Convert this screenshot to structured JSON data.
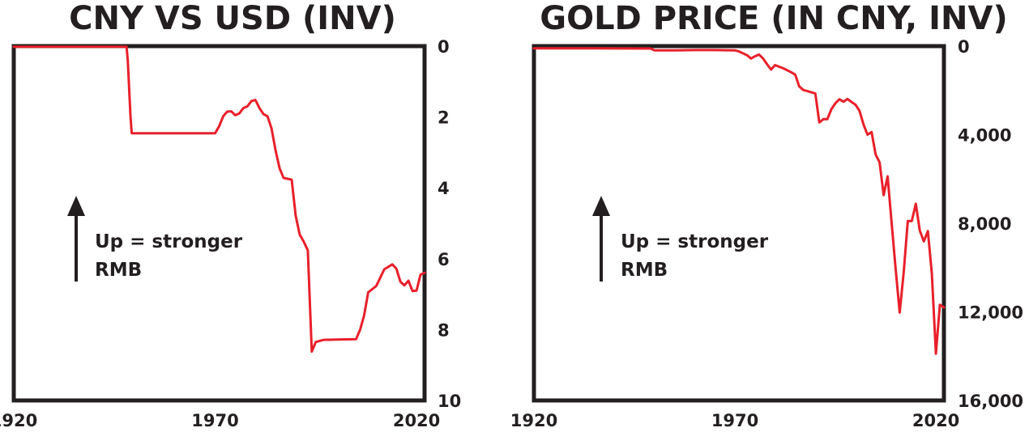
{
  "chart_data": [
    {
      "type": "line",
      "title": "CNY VS USD (INV)",
      "y_inverted": true,
      "y_axis_side": "right",
      "xlim": [
        1920,
        2022
      ],
      "ylim": [
        0,
        10
      ],
      "x_ticks": [
        1920,
        1970,
        2020
      ],
      "x_tick_labels": [
        "1920",
        "1970",
        "2020"
      ],
      "y_ticks": [
        0,
        2,
        4,
        6,
        8,
        10
      ],
      "y_tick_labels": [
        "0",
        "2",
        "4",
        "6",
        "8",
        "10"
      ],
      "grid": false,
      "annotation": {
        "line1": "Up = stronger",
        "line2": "RMB"
      },
      "series": [
        {
          "color": "#e8202a",
          "points": [
            [
              1920,
              0.02
            ],
            [
              1948,
              0.02
            ],
            [
              1948.3,
              0.4
            ],
            [
              1949,
              2.0
            ],
            [
              1949.3,
              2.46
            ],
            [
              1955,
              2.46
            ],
            [
              1970,
              2.46
            ],
            [
              1971,
              2.26
            ],
            [
              1972,
              1.98
            ],
            [
              1973,
              1.85
            ],
            [
              1974,
              1.84
            ],
            [
              1975,
              1.95
            ],
            [
              1976,
              1.9
            ],
            [
              1977,
              1.75
            ],
            [
              1978,
              1.7
            ],
            [
              1979,
              1.55
            ],
            [
              1980,
              1.52
            ],
            [
              1981,
              1.75
            ],
            [
              1982,
              1.92
            ],
            [
              1983,
              1.98
            ],
            [
              1984,
              2.32
            ],
            [
              1985,
              2.94
            ],
            [
              1986,
              3.45
            ],
            [
              1987,
              3.72
            ],
            [
              1989,
              3.77
            ],
            [
              1990,
              4.78
            ],
            [
              1991,
              5.32
            ],
            [
              1992,
              5.52
            ],
            [
              1993,
              5.76
            ],
            [
              1994,
              8.62
            ],
            [
              1995,
              8.35
            ],
            [
              1997,
              8.29
            ],
            [
              2000,
              8.28
            ],
            [
              2005,
              8.27
            ],
            [
              2006,
              8.0
            ],
            [
              2007,
              7.6
            ],
            [
              2008,
              6.95
            ],
            [
              2010,
              6.77
            ],
            [
              2012,
              6.3
            ],
            [
              2014,
              6.16
            ],
            [
              2015,
              6.28
            ],
            [
              2016,
              6.65
            ],
            [
              2017,
              6.75
            ],
            [
              2018,
              6.62
            ],
            [
              2019,
              6.91
            ],
            [
              2020,
              6.9
            ],
            [
              2021,
              6.45
            ],
            [
              2022,
              6.4
            ]
          ]
        }
      ]
    },
    {
      "type": "line",
      "title": "GOLD PRICE (IN CNY, INV)",
      "y_inverted": true,
      "y_axis_side": "right",
      "xlim": [
        1920,
        2022
      ],
      "ylim": [
        0,
        16000
      ],
      "x_ticks": [
        1920,
        1970,
        2020
      ],
      "x_tick_labels": [
        "1920",
        "1970",
        "2020"
      ],
      "y_ticks": [
        0,
        4000,
        8000,
        12000,
        16000
      ],
      "y_tick_labels": [
        "0",
        "4,000",
        "8,000",
        "12,000",
        "16,000"
      ],
      "grid": false,
      "annotation": {
        "line1": "Up = stronger",
        "line2": "RMB"
      },
      "series": [
        {
          "color": "#e8202a",
          "points": [
            [
              1920,
              100
            ],
            [
              1935,
              100
            ],
            [
              1949,
              110
            ],
            [
              1950,
              190
            ],
            [
              1955,
              190
            ],
            [
              1960,
              180
            ],
            [
              1965,
              180
            ],
            [
              1970,
              190
            ],
            [
              1971,
              240
            ],
            [
              1973,
              410
            ],
            [
              1974,
              560
            ],
            [
              1975,
              460
            ],
            [
              1976,
              380
            ],
            [
              1977,
              560
            ],
            [
              1978,
              820
            ],
            [
              1979,
              1060
            ],
            [
              1980,
              860
            ],
            [
              1982,
              1000
            ],
            [
              1984,
              1180
            ],
            [
              1985,
              1290
            ],
            [
              1986,
              1820
            ],
            [
              1987,
              1980
            ],
            [
              1988,
              2030
            ],
            [
              1990,
              2140
            ],
            [
              1991,
              3450
            ],
            [
              1992,
              3300
            ],
            [
              1993,
              3300
            ],
            [
              1994,
              2850
            ],
            [
              1995,
              2580
            ],
            [
              1996,
              2400
            ],
            [
              1997,
              2510
            ],
            [
              1998,
              2390
            ],
            [
              1999,
              2520
            ],
            [
              2000,
              2650
            ],
            [
              2001,
              2920
            ],
            [
              2002,
              3540
            ],
            [
              2003,
              4000
            ],
            [
              2004,
              3880
            ],
            [
              2005,
              4890
            ],
            [
              2006,
              5250
            ],
            [
              2007,
              6730
            ],
            [
              2008,
              5880
            ],
            [
              2009,
              8000
            ],
            [
              2010,
              10100
            ],
            [
              2011,
              12030
            ],
            [
              2012,
              10200
            ],
            [
              2013,
              7900
            ],
            [
              2014,
              7900
            ],
            [
              2015,
              7120
            ],
            [
              2016,
              8330
            ],
            [
              2017,
              8820
            ],
            [
              2018,
              8350
            ],
            [
              2019,
              10280
            ],
            [
              2020,
              13890
            ],
            [
              2021,
              11680
            ],
            [
              2022,
              11800
            ]
          ]
        }
      ]
    }
  ]
}
